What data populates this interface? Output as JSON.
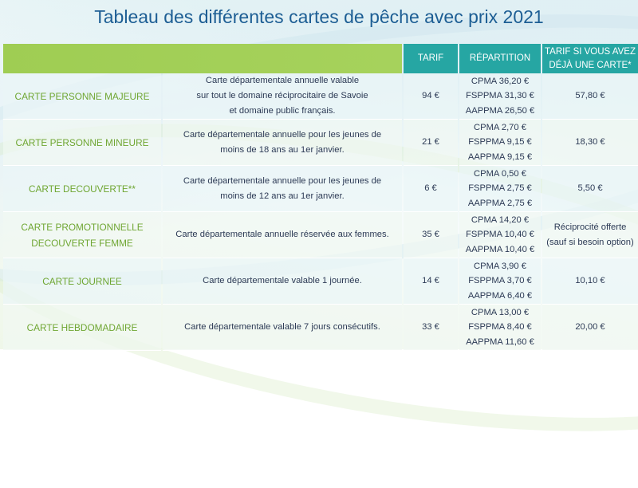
{
  "title": "Tableau des différentes cartes de pêche avec prix 2021",
  "headers": {
    "tarif": "TARIF",
    "repartition": "RÉPARTITION",
    "tarif_si_line1": "TARIF SI VOUS AVEZ",
    "tarif_si_line2": "DÉJÀ UNE CARTE*"
  },
  "rows": [
    {
      "name_lines": [
        "CARTE PERSONNE MAJEURE"
      ],
      "desc_lines": [
        "Carte départementale annuelle valable",
        "sur tout le domaine réciprocitaire de Savoie",
        "et domaine public français."
      ],
      "tarif": "94 €",
      "repartition": [
        "CPMA 36,20 €",
        "FSPPMA 31,30 €",
        "AAPPMA 26,50 €"
      ],
      "tarif_si_lines": [
        "57,80 €"
      ]
    },
    {
      "name_lines": [
        "CARTE PERSONNE MINEURE"
      ],
      "desc_lines": [
        "Carte départementale annuelle pour les jeunes de",
        "moins de 18 ans au 1er janvier."
      ],
      "tarif": "21 €",
      "repartition": [
        "CPMA 2,70 €",
        "FSPPMA 9,15 €",
        "AAPPMA 9,15 €"
      ],
      "tarif_si_lines": [
        "18,30 €"
      ]
    },
    {
      "name_lines": [
        "CARTE DECOUVERTE**"
      ],
      "desc_lines": [
        "Carte départementale annuelle pour les jeunes de",
        "moins de 12 ans au 1er janvier."
      ],
      "tarif": "6 €",
      "repartition": [
        "CPMA 0,50 €",
        "FSPPMA 2,75 €",
        "AAPPMA 2,75 €"
      ],
      "tarif_si_lines": [
        "5,50 €"
      ]
    },
    {
      "name_lines": [
        "CARTE PROMOTIONNELLE",
        "DECOUVERTE FEMME"
      ],
      "desc_lines": [
        "Carte départementale annuelle réservée aux femmes."
      ],
      "tarif": "35 €",
      "repartition": [
        "CPMA 14,20 €",
        "FSPPMA 10,40 €",
        "AAPPMA 10,40 €"
      ],
      "tarif_si_lines": [
        "Réciprocité offerte",
        "(sauf si besoin option)"
      ]
    },
    {
      "name_lines": [
        "CARTE JOURNEE"
      ],
      "desc_lines": [
        "Carte départementale valable 1 journée."
      ],
      "tarif": "14 €",
      "repartition": [
        "CPMA 3,90 €",
        "FSPPMA 3,70 €",
        "AAPPMA 6,40 €"
      ],
      "tarif_si_lines": [
        "10,10 €"
      ]
    },
    {
      "name_lines": [
        "CARTE HEBDOMADAIRE"
      ],
      "desc_lines": [
        "Carte départementale valable 7 jours consécutifs."
      ],
      "tarif": "33 €",
      "repartition": [
        "CPMA 13,00 €",
        "FSPPMA 8,40 €",
        "AAPPMA 11,60 €"
      ],
      "tarif_si_lines": [
        "20,00 €"
      ]
    }
  ]
}
